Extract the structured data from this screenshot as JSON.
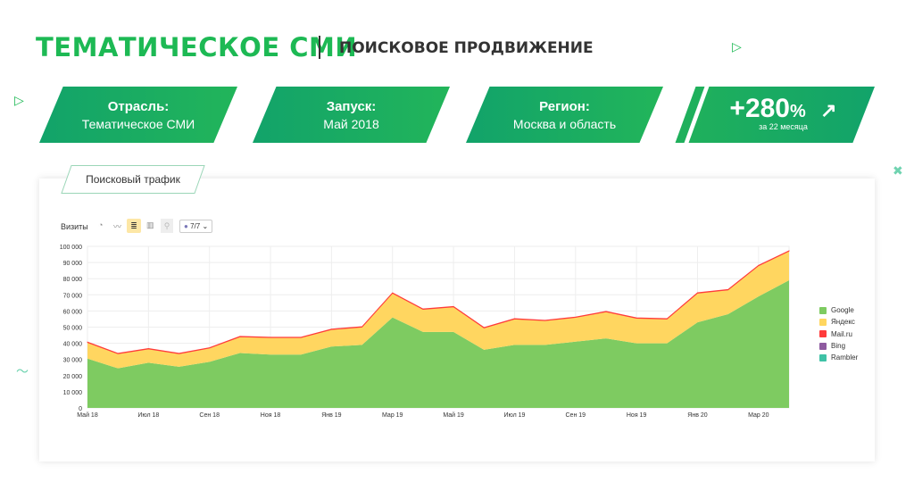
{
  "header": {
    "title": "ТЕМАТИЧЕСКОЕ СМИ",
    "subtitle": "ПОИСКОВОЕ ПРОДВИЖЕНИЕ"
  },
  "cards": [
    {
      "label": "Отрасль:",
      "value": "Тематическое СМИ"
    },
    {
      "label": "Запуск:",
      "value": "Май 2018"
    },
    {
      "label": "Регион:",
      "value": "Москва и область"
    }
  ],
  "growth": {
    "value": "+280",
    "unit": "%",
    "caption": "за 22 месяца",
    "icon": "growth-arrow-icon"
  },
  "panel": {
    "tab": "Поисковый трафик",
    "metric": "Визиты",
    "filter": "7/7",
    "view_icons": [
      "pie-icon",
      "line-icon",
      "area-stacked-icon",
      "bar-icon",
      "map-icon"
    ]
  },
  "colors": {
    "accent": "#1db954",
    "google": "#7ecb61",
    "yandex": "#ffd660",
    "mailru": "#ff3b3b",
    "bing": "#8e5ba0",
    "rambler": "#3fc2a6"
  },
  "chart_data": {
    "type": "area",
    "stacked": true,
    "ylim": [
      0,
      100000
    ],
    "yticks": [
      "0",
      "10 000",
      "20 000",
      "30 000",
      "40 000",
      "50 000",
      "60 000",
      "70 000",
      "80 000",
      "90 000",
      "100 000"
    ],
    "months": [
      "Май 18",
      "Июн 18",
      "Июл 18",
      "Авг 18",
      "Сен 18",
      "Окт 18",
      "Ноя 18",
      "Дек 18",
      "Янв 19",
      "Фев 19",
      "Мар 19",
      "Апр 19",
      "Май 19",
      "Июн 19",
      "Июл 19",
      "Авг 19",
      "Сен 19",
      "Окт 19",
      "Ноя 19",
      "Дек 19",
      "Янв 20",
      "Фев 20",
      "Мар 20",
      "Апр 20"
    ],
    "xticks": [
      "Май 18",
      "Июл 18",
      "Сен 18",
      "Ноя 18",
      "Янв 19",
      "Мар 19",
      "Май 19",
      "Июл 19",
      "Сен 19",
      "Ноя 19",
      "Янв 20",
      "Мар 20"
    ],
    "grid": true,
    "legend_position": "right",
    "series": [
      {
        "name": "Google",
        "values": [
          30500,
          24500,
          28000,
          25500,
          28500,
          34000,
          33000,
          33000,
          38000,
          39000,
          56000,
          47000,
          47000,
          36000,
          39000,
          39000,
          41000,
          43000,
          40000,
          40000,
          53000,
          58000,
          69000,
          79000
        ]
      },
      {
        "name": "Яндекс",
        "values": [
          10000,
          9000,
          8500,
          8000,
          8500,
          10000,
          10500,
          10500,
          10500,
          11000,
          15000,
          14000,
          15500,
          13500,
          16000,
          15000,
          15000,
          16500,
          15500,
          15000,
          18000,
          15000,
          19000,
          18000
        ]
      },
      {
        "name": "Mail.ru",
        "values": [
          300,
          300,
          300,
          300,
          300,
          300,
          300,
          300,
          300,
          300,
          300,
          300,
          300,
          300,
          300,
          300,
          300,
          300,
          300,
          300,
          300,
          300,
          300,
          300
        ]
      },
      {
        "name": "Bing",
        "values": [
          0,
          0,
          0,
          0,
          0,
          0,
          0,
          0,
          0,
          0,
          0,
          0,
          0,
          0,
          0,
          0,
          0,
          0,
          0,
          0,
          0,
          0,
          0,
          0
        ]
      },
      {
        "name": "Rambler",
        "values": [
          0,
          0,
          0,
          0,
          0,
          0,
          0,
          0,
          0,
          0,
          0,
          0,
          0,
          0,
          0,
          0,
          0,
          0,
          0,
          0,
          0,
          0,
          0,
          0
        ]
      }
    ]
  }
}
